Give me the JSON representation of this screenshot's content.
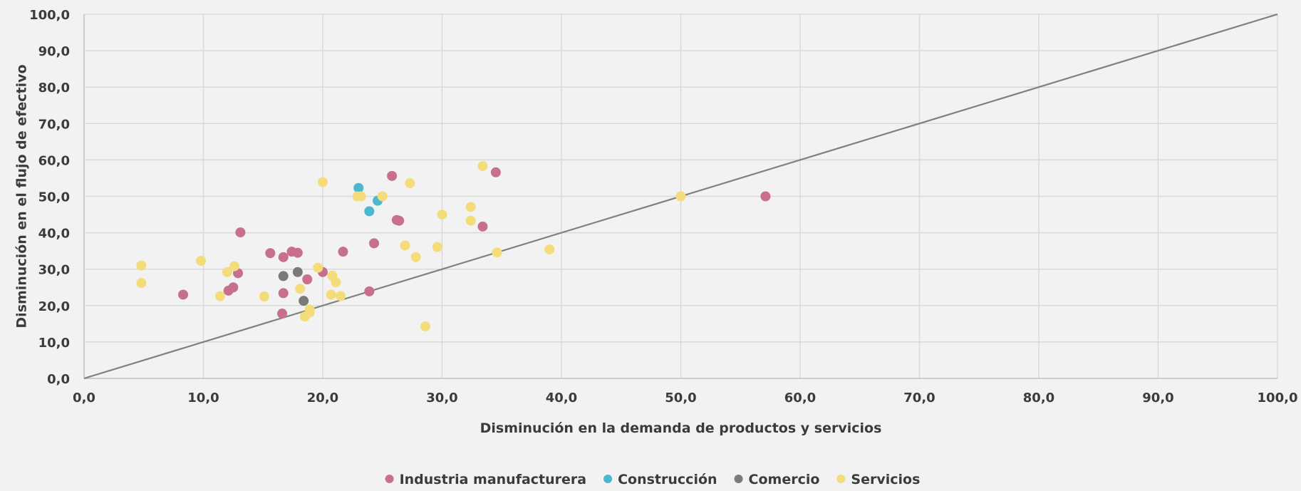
{
  "chart_data": {
    "type": "scatter",
    "title": "",
    "xlabel": "Disminución en la demanda de productos y servicios",
    "ylabel": "Disminución en el flujo de efectivo",
    "xlim": [
      0,
      100
    ],
    "ylim": [
      0,
      100
    ],
    "x_ticks": [
      "0,0",
      "10,0",
      "20,0",
      "30,0",
      "40,0",
      "50,0",
      "60,0",
      "70,0",
      "80,0",
      "90,0",
      "100,0"
    ],
    "y_ticks": [
      "0,0",
      "10,0",
      "20,0",
      "30,0",
      "40,0",
      "50,0",
      "60,0",
      "70,0",
      "80,0",
      "90,0",
      "100,0"
    ],
    "grid": true,
    "legend_position": "bottom",
    "reference_line": {
      "from": [
        0,
        0
      ],
      "to": [
        100,
        100
      ],
      "color": "#808080"
    },
    "series": [
      {
        "name": "Industria manufacturera",
        "color": "#c96f8e",
        "points": [
          [
            8.3,
            23.0
          ],
          [
            12.1,
            24.1
          ],
          [
            12.5,
            25.0
          ],
          [
            12.9,
            28.9
          ],
          [
            13.1,
            40.1
          ],
          [
            15.6,
            34.4
          ],
          [
            16.6,
            17.8
          ],
          [
            16.7,
            23.4
          ],
          [
            16.7,
            33.3
          ],
          [
            17.4,
            34.8
          ],
          [
            17.9,
            34.5
          ],
          [
            18.7,
            27.2
          ],
          [
            20.0,
            29.2
          ],
          [
            21.7,
            34.8
          ],
          [
            23.9,
            23.9
          ],
          [
            24.3,
            37.1
          ],
          [
            25.8,
            55.6
          ],
          [
            26.2,
            43.5
          ],
          [
            26.4,
            43.3
          ],
          [
            33.4,
            41.7
          ],
          [
            34.5,
            56.6
          ],
          [
            57.1,
            50.0
          ]
        ]
      },
      {
        "name": "Construcción",
        "color": "#4bb8cf",
        "points": [
          [
            23.0,
            52.3
          ],
          [
            23.9,
            45.9
          ],
          [
            24.6,
            48.8
          ]
        ]
      },
      {
        "name": "Comercio",
        "color": "#7a7a7a",
        "points": [
          [
            16.7,
            28.1
          ],
          [
            17.9,
            29.2
          ],
          [
            18.4,
            21.3
          ]
        ]
      },
      {
        "name": "Servicios",
        "color": "#f5dc7a",
        "points": [
          [
            4.8,
            31.0
          ],
          [
            4.8,
            26.2
          ],
          [
            9.8,
            32.3
          ],
          [
            11.4,
            22.6
          ],
          [
            12.0,
            29.2
          ],
          [
            12.6,
            30.8
          ],
          [
            15.1,
            22.5
          ],
          [
            18.1,
            24.6
          ],
          [
            18.5,
            17.0
          ],
          [
            18.9,
            18.1
          ],
          [
            18.9,
            18.9
          ],
          [
            19.6,
            30.4
          ],
          [
            20.0,
            53.9
          ],
          [
            20.7,
            23.0
          ],
          [
            20.8,
            28.2
          ],
          [
            21.1,
            26.4
          ],
          [
            21.5,
            22.6
          ],
          [
            22.9,
            50.0
          ],
          [
            23.2,
            50.0
          ],
          [
            25.0,
            50.0
          ],
          [
            26.9,
            36.5
          ],
          [
            27.3,
            53.6
          ],
          [
            27.8,
            33.3
          ],
          [
            28.6,
            14.3
          ],
          [
            29.6,
            36.1
          ],
          [
            30.0,
            45.0
          ],
          [
            32.4,
            47.1
          ],
          [
            32.4,
            43.3
          ],
          [
            33.4,
            58.3
          ],
          [
            34.6,
            34.6
          ],
          [
            39.0,
            35.4
          ],
          [
            50.0,
            50.0
          ]
        ]
      }
    ]
  }
}
